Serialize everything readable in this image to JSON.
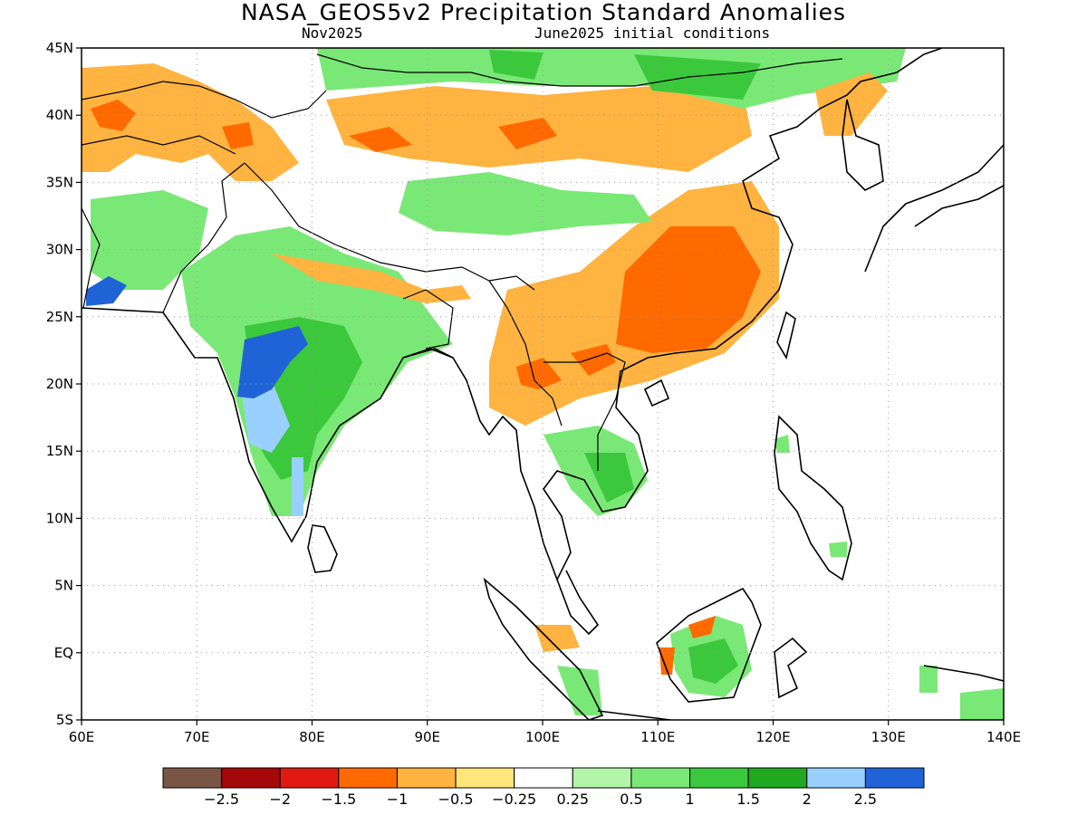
{
  "title": "NASA_GEOS5v2 Precipitation Standard Anomalies",
  "subtitle_left": "Nov2025",
  "subtitle_right": "June2025 initial conditions",
  "map": {
    "lon_range": [
      60,
      140
    ],
    "lat_range": [
      -5,
      45
    ],
    "lon_ticks": [
      "60E",
      "70E",
      "80E",
      "90E",
      "100E",
      "110E",
      "120E",
      "130E",
      "140E"
    ],
    "lat_ticks": [
      "5S",
      "EQ",
      "5N",
      "10N",
      "15N",
      "20N",
      "25N",
      "30N",
      "35N",
      "40N",
      "45N"
    ],
    "grid": true
  },
  "colorbar": {
    "colors": [
      "#7a5545",
      "#a50808",
      "#e01a10",
      "#ff6a00",
      "#ffb340",
      "#ffe57a",
      "#ffffff",
      "#b3f5a8",
      "#7ae876",
      "#3cc83c",
      "#20a820",
      "#99d0ff",
      "#1f63d6"
    ],
    "labels": [
      "−2.5",
      "−2",
      "−1.5",
      "−1",
      "−0.5",
      "−0.25",
      "0.25",
      "0.5",
      "1",
      "1.5",
      "2",
      "2.5"
    ]
  },
  "anomaly_regions": [
    {
      "name": "South China",
      "level": -1,
      "color": "#ff6a00"
    },
    {
      "name": "South China outer",
      "level": -0.5,
      "color": "#ffb340"
    },
    {
      "name": "Central India",
      "level": 2.5,
      "color": "#1f63d6"
    },
    {
      "name": "Central India outer",
      "level": 1,
      "color": "#7ae876"
    },
    {
      "name": "Mongolia / North China",
      "level": 1,
      "color": "#7ae876"
    },
    {
      "name": "Tibet plateau",
      "level": -0.5,
      "color": "#ffb340"
    },
    {
      "name": "Pakistan coast",
      "level": 2.5,
      "color": "#1f63d6"
    }
  ]
}
